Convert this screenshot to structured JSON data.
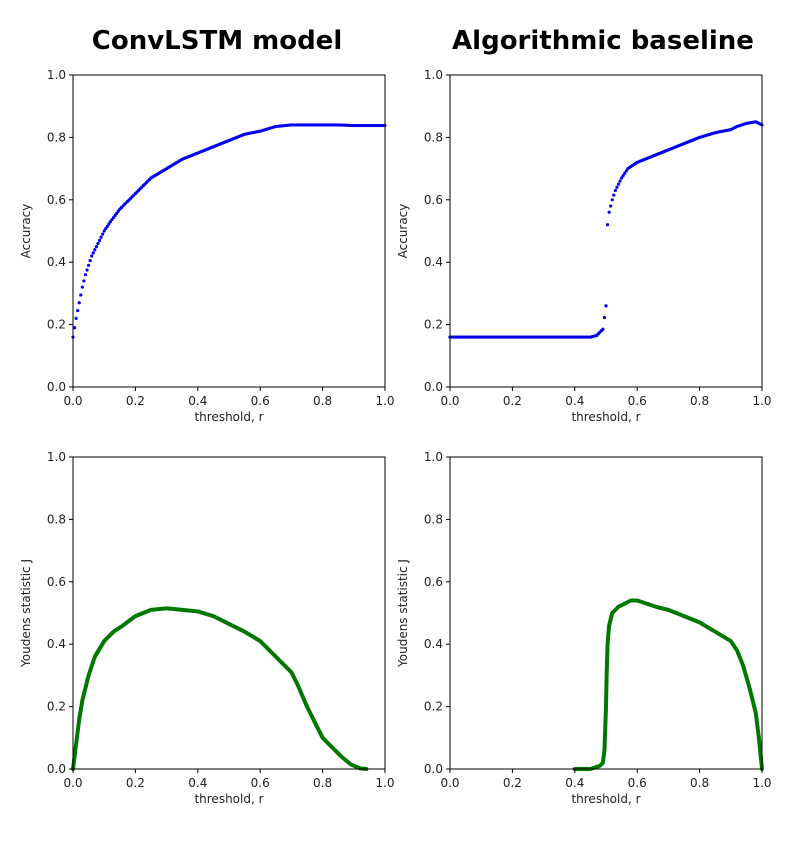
{
  "titles": {
    "left": "ConvLSTM model",
    "right": "Algorithmic baseline"
  },
  "chart_data": [
    {
      "id": "convlstm-accuracy",
      "type": "scatter",
      "column": "ConvLSTM model",
      "xlabel": "threshold, r",
      "ylabel": "Accuracy",
      "xlim": [
        0,
        1
      ],
      "ylim": [
        0,
        1
      ],
      "xticks": [
        "0.0",
        "0.2",
        "0.4",
        "0.6",
        "0.8",
        "1.0"
      ],
      "yticks": [
        "0.0",
        "0.2",
        "0.4",
        "0.6",
        "0.8",
        "1.0"
      ],
      "color": "#0000ee",
      "grid": false,
      "x": [
        0.0,
        0.01,
        0.02,
        0.03,
        0.04,
        0.05,
        0.06,
        0.08,
        0.1,
        0.12,
        0.15,
        0.18,
        0.2,
        0.25,
        0.3,
        0.35,
        0.4,
        0.45,
        0.5,
        0.55,
        0.6,
        0.65,
        0.7,
        0.75,
        0.8,
        0.85,
        0.9,
        0.95,
        1.0
      ],
      "y": [
        0.16,
        0.22,
        0.27,
        0.32,
        0.36,
        0.39,
        0.42,
        0.46,
        0.5,
        0.53,
        0.57,
        0.6,
        0.62,
        0.67,
        0.7,
        0.73,
        0.75,
        0.77,
        0.79,
        0.81,
        0.82,
        0.835,
        0.84,
        0.84,
        0.84,
        0.84,
        0.838,
        0.838,
        0.838
      ]
    },
    {
      "id": "baseline-accuracy",
      "type": "scatter",
      "column": "Algorithmic baseline",
      "xlabel": "threshold, r",
      "ylabel": "Accuracy",
      "xlim": [
        0,
        1
      ],
      "ylim": [
        0,
        1
      ],
      "xticks": [
        "0.0",
        "0.2",
        "0.4",
        "0.6",
        "0.8",
        "1.0"
      ],
      "yticks": [
        "0.0",
        "0.2",
        "0.4",
        "0.6",
        "0.8",
        "1.0"
      ],
      "color": "#0000ee",
      "grid": false,
      "x": [
        0.0,
        0.05,
        0.1,
        0.15,
        0.2,
        0.25,
        0.3,
        0.35,
        0.4,
        0.45,
        0.47,
        0.48,
        0.49,
        0.5,
        0.505,
        0.51,
        0.52,
        0.53,
        0.55,
        0.57,
        0.6,
        0.65,
        0.7,
        0.75,
        0.8,
        0.85,
        0.9,
        0.92,
        0.95,
        0.98,
        1.0
      ],
      "y": [
        0.16,
        0.16,
        0.16,
        0.16,
        0.16,
        0.16,
        0.16,
        0.16,
        0.16,
        0.16,
        0.165,
        0.175,
        0.185,
        0.26,
        0.52,
        0.56,
        0.6,
        0.63,
        0.67,
        0.7,
        0.72,
        0.74,
        0.76,
        0.78,
        0.8,
        0.815,
        0.825,
        0.835,
        0.845,
        0.85,
        0.84
      ]
    },
    {
      "id": "convlstm-youden",
      "type": "line",
      "column": "ConvLSTM model",
      "xlabel": "threshold, r",
      "ylabel": "Youdens statistic J",
      "xlim": [
        0,
        1
      ],
      "ylim": [
        0,
        1
      ],
      "xticks": [
        "0.0",
        "0.2",
        "0.4",
        "0.6",
        "0.8",
        "1.0"
      ],
      "yticks": [
        "0.0",
        "0.2",
        "0.4",
        "0.6",
        "0.8",
        "1.0"
      ],
      "color": "#007700",
      "grid": false,
      "x": [
        0.0,
        0.01,
        0.02,
        0.03,
        0.05,
        0.07,
        0.1,
        0.13,
        0.16,
        0.2,
        0.25,
        0.3,
        0.35,
        0.4,
        0.45,
        0.5,
        0.55,
        0.6,
        0.65,
        0.7,
        0.72,
        0.75,
        0.78,
        0.8,
        0.83,
        0.86,
        0.89,
        0.92,
        0.94
      ],
      "y": [
        0.0,
        0.08,
        0.16,
        0.22,
        0.3,
        0.36,
        0.41,
        0.44,
        0.46,
        0.49,
        0.51,
        0.515,
        0.51,
        0.505,
        0.49,
        0.465,
        0.44,
        0.41,
        0.36,
        0.31,
        0.27,
        0.2,
        0.14,
        0.1,
        0.07,
        0.04,
        0.015,
        0.002,
        0.0
      ]
    },
    {
      "id": "baseline-youden",
      "type": "line",
      "column": "Algorithmic baseline",
      "xlabel": "threshold, r",
      "ylabel": "Youdens statistic J",
      "xlim": [
        0,
        1
      ],
      "ylim": [
        0,
        1
      ],
      "xticks": [
        "0.0",
        "0.2",
        "0.4",
        "0.6",
        "0.8",
        "1.0"
      ],
      "yticks": [
        "0.0",
        "0.2",
        "0.4",
        "0.6",
        "0.8",
        "1.0"
      ],
      "color": "#007700",
      "grid": false,
      "x": [
        0.4,
        0.45,
        0.48,
        0.49,
        0.495,
        0.5,
        0.502,
        0.505,
        0.51,
        0.52,
        0.54,
        0.56,
        0.58,
        0.6,
        0.63,
        0.66,
        0.7,
        0.75,
        0.8,
        0.85,
        0.9,
        0.92,
        0.94,
        0.96,
        0.98,
        0.99,
        0.995,
        1.0
      ],
      "y": [
        0.0,
        0.0,
        0.01,
        0.02,
        0.06,
        0.2,
        0.3,
        0.4,
        0.46,
        0.5,
        0.52,
        0.53,
        0.54,
        0.54,
        0.53,
        0.52,
        0.51,
        0.49,
        0.47,
        0.44,
        0.41,
        0.38,
        0.33,
        0.26,
        0.18,
        0.1,
        0.05,
        0.0
      ]
    }
  ]
}
